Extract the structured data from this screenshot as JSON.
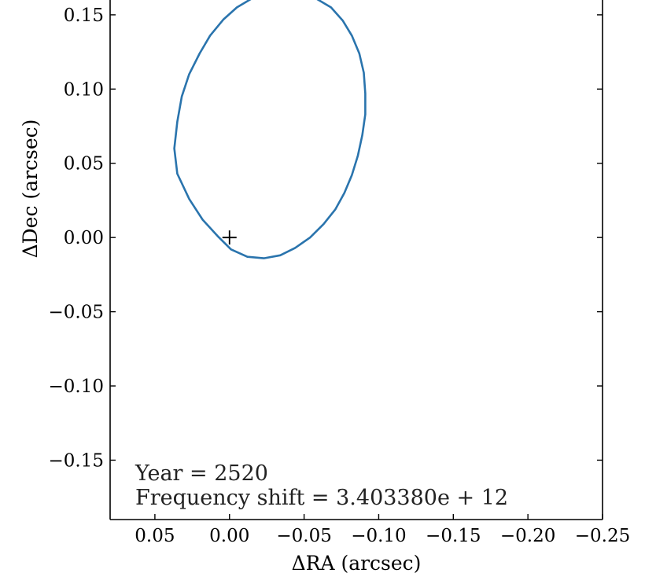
{
  "chart_data": {
    "type": "line",
    "xlabel": "ΔRA (arcsec)",
    "ylabel": "ΔDec (arcsec)",
    "xlim": [
      0.08,
      -0.25
    ],
    "ylim": [
      -0.19,
      0.16
    ],
    "x_inverted": true,
    "x_ticks": [
      0.05,
      0.0,
      -0.05,
      -0.1,
      -0.15,
      -0.2,
      -0.25
    ],
    "x_tick_labels": [
      "0.05",
      "0.00",
      "−0.05",
      "−0.10",
      "−0.15",
      "−0.20",
      "−0.25"
    ],
    "y_ticks": [
      0.15,
      0.1,
      0.05,
      0.0,
      -0.05,
      -0.1,
      -0.15
    ],
    "y_tick_labels": [
      "0.15",
      "0.10",
      "0.05",
      "0.00",
      "−0.05",
      "−0.10",
      "−0.15"
    ],
    "grid": false,
    "series": [
      {
        "style": "closed-curve",
        "color": "#2a74ad",
        "x": [
          0.037,
          0.035,
          0.027,
          0.018,
          0.008,
          -0.001,
          -0.012,
          -0.023,
          -0.034,
          -0.044,
          -0.054,
          -0.063,
          -0.071,
          -0.077,
          -0.082,
          -0.086,
          -0.089,
          -0.091,
          -0.091,
          -0.09,
          -0.087,
          -0.082,
          -0.076,
          -0.068,
          -0.058,
          -0.047,
          -0.036,
          -0.025,
          -0.015,
          -0.005,
          0.004,
          0.013,
          0.02,
          0.027,
          0.032,
          0.035,
          0.037
        ],
        "y": [
          0.06,
          0.043,
          0.026,
          0.012,
          0.001,
          -0.008,
          -0.013,
          -0.014,
          -0.012,
          -0.007,
          0.0,
          0.009,
          0.019,
          0.03,
          0.042,
          0.055,
          0.069,
          0.083,
          0.097,
          0.111,
          0.124,
          0.136,
          0.146,
          0.155,
          0.161,
          0.165,
          0.166,
          0.165,
          0.161,
          0.155,
          0.147,
          0.136,
          0.124,
          0.11,
          0.095,
          0.078,
          0.06
        ]
      }
    ],
    "markers": [
      {
        "symbol": "+",
        "x": 0.0,
        "y": 0.0,
        "color": "#000000"
      }
    ],
    "annotations": [
      "Year = 2520",
      "Frequency shift = 3.403380e + 12"
    ]
  }
}
